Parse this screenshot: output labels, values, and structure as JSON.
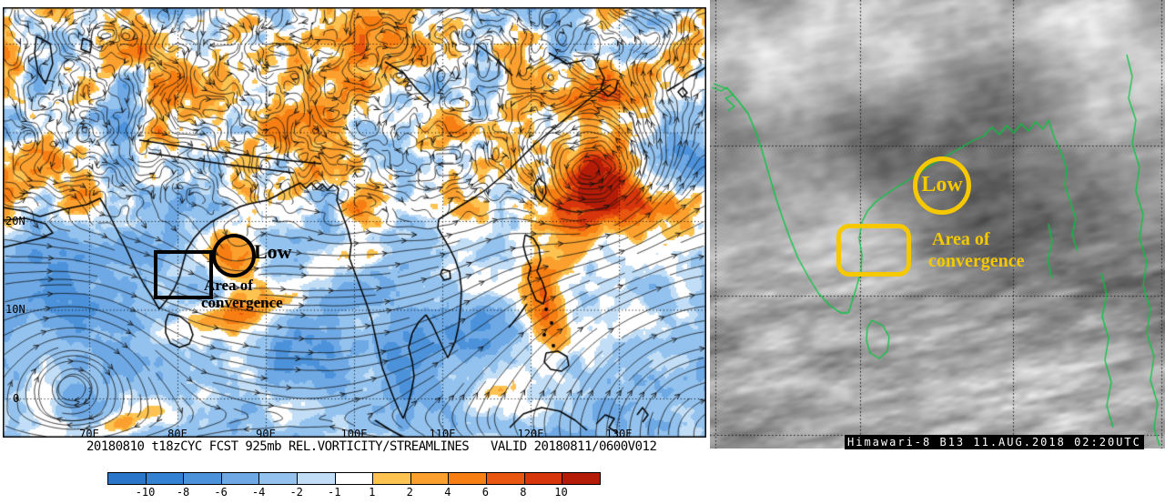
{
  "left_chart": {
    "type": "streamline-vorticity-map",
    "caption": "20180810 t18zCYC FCST 925mb REL.VORTICITY/STREAMLINES   VALID 20180811/0600V012",
    "lat_labels": [
      "20N",
      "10N",
      "0"
    ],
    "lon_labels": [
      "70E",
      "80E",
      "90E",
      "100E",
      "110E",
      "120E",
      "130E"
    ],
    "annotations": {
      "low_label": "Low",
      "area_line1": "Area of",
      "area_line2": "convergence",
      "color": "#000000"
    },
    "colorbar": {
      "ticks": [
        "-10",
        "-8",
        "-6",
        "-4",
        "-2",
        "-1",
        "1",
        "2",
        "4",
        "6",
        "8",
        "10"
      ],
      "colors": [
        "#2a76ca",
        "#3381d3",
        "#4c92da",
        "#6ea9e5",
        "#93c2ee",
        "#c2def6",
        "#ffffff",
        "#fcc351",
        "#fba02e",
        "#f67e12",
        "#e8560f",
        "#d7350b",
        "#b51c07"
      ]
    }
  },
  "satellite": {
    "caption": "Himawari-8 B13 11.AUG.2018 02:20UTC",
    "caption_bg": "#000000",
    "caption_fg": "#ffffff",
    "coast_color": "#00c83c",
    "annotations": {
      "low_label": "Low",
      "area_line1": "Area of",
      "area_line2": "convergence",
      "color": "#f5c800"
    }
  },
  "chart_data": {
    "type": "heatmap",
    "title": "925mb relative vorticity (shaded) with streamlines",
    "legend_ticks": [
      -10,
      -8,
      -6,
      -4,
      -2,
      -1,
      1,
      2,
      4,
      6,
      8,
      10
    ],
    "legend_colors": [
      "#2a76ca",
      "#3381d3",
      "#4c92da",
      "#6ea9e5",
      "#93c2ee",
      "#c2def6",
      "#ffffff",
      "#fcc351",
      "#fba02e",
      "#f67e12",
      "#e8560f",
      "#d7350b",
      "#b51c07"
    ],
    "x_ticks": [
      "70E",
      "80E",
      "90E",
      "100E",
      "110E",
      "120E",
      "130E"
    ],
    "y_ticks": [
      "20N",
      "10N",
      "0"
    ],
    "annotations": [
      "Low",
      "Area of convergence"
    ]
  }
}
